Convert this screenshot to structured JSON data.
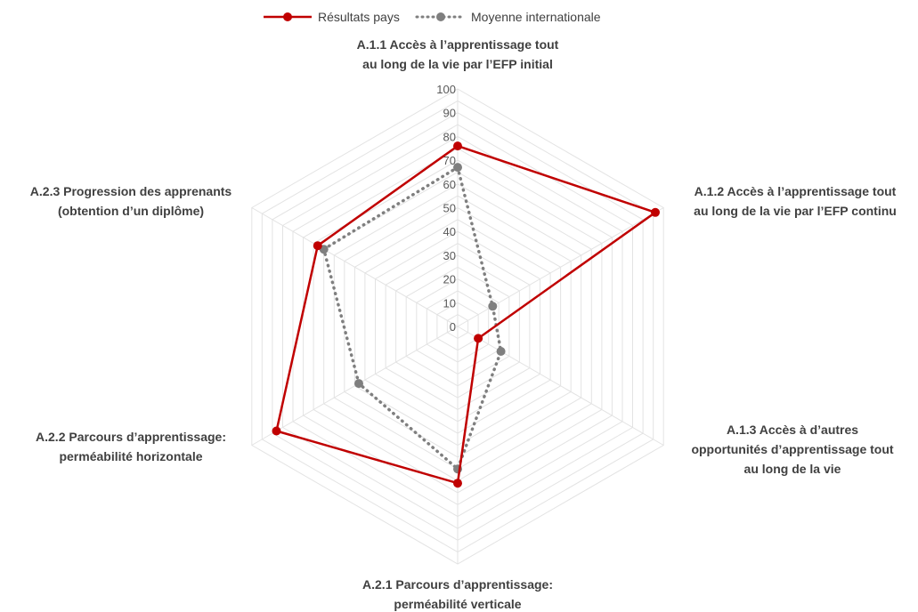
{
  "chart_data": {
    "type": "radar",
    "r_range": [
      0,
      100
    ],
    "r_ticks": [
      0,
      10,
      20,
      30,
      40,
      50,
      60,
      70,
      80,
      90,
      100
    ],
    "grid": true,
    "legend_position": "top",
    "categories": [
      [
        "A.1.1 Accès à l’apprentissage tout",
        "au long de la vie par l’EFP initial"
      ],
      [
        "A.1.2 Accès à l’apprentissage tout",
        "au long de la vie par l’EFP continu"
      ],
      [
        "A.1.3 Accès à d’autres",
        "opportunités d’apprentissage tout",
        "au long de la vie"
      ],
      [
        "A.2.1 Parcours d’apprentissage:",
        "perméabilité verticale"
      ],
      [
        "A.2.2 Parcours d’apprentissage:",
        "perméabilité horizontale"
      ],
      [
        "A.2.3 Progression des apprenants",
        "(obtention d’un diplôme)"
      ]
    ],
    "series": [
      {
        "name": "Résultats pays",
        "color": "#c00000",
        "style": "solid",
        "values": [
          76,
          96,
          10,
          66,
          88,
          68
        ]
      },
      {
        "name": "Moyenne internationale",
        "color": "#7f7f7f",
        "style": "dotted",
        "values": [
          67,
          17,
          21,
          60,
          48,
          65
        ]
      }
    ]
  }
}
